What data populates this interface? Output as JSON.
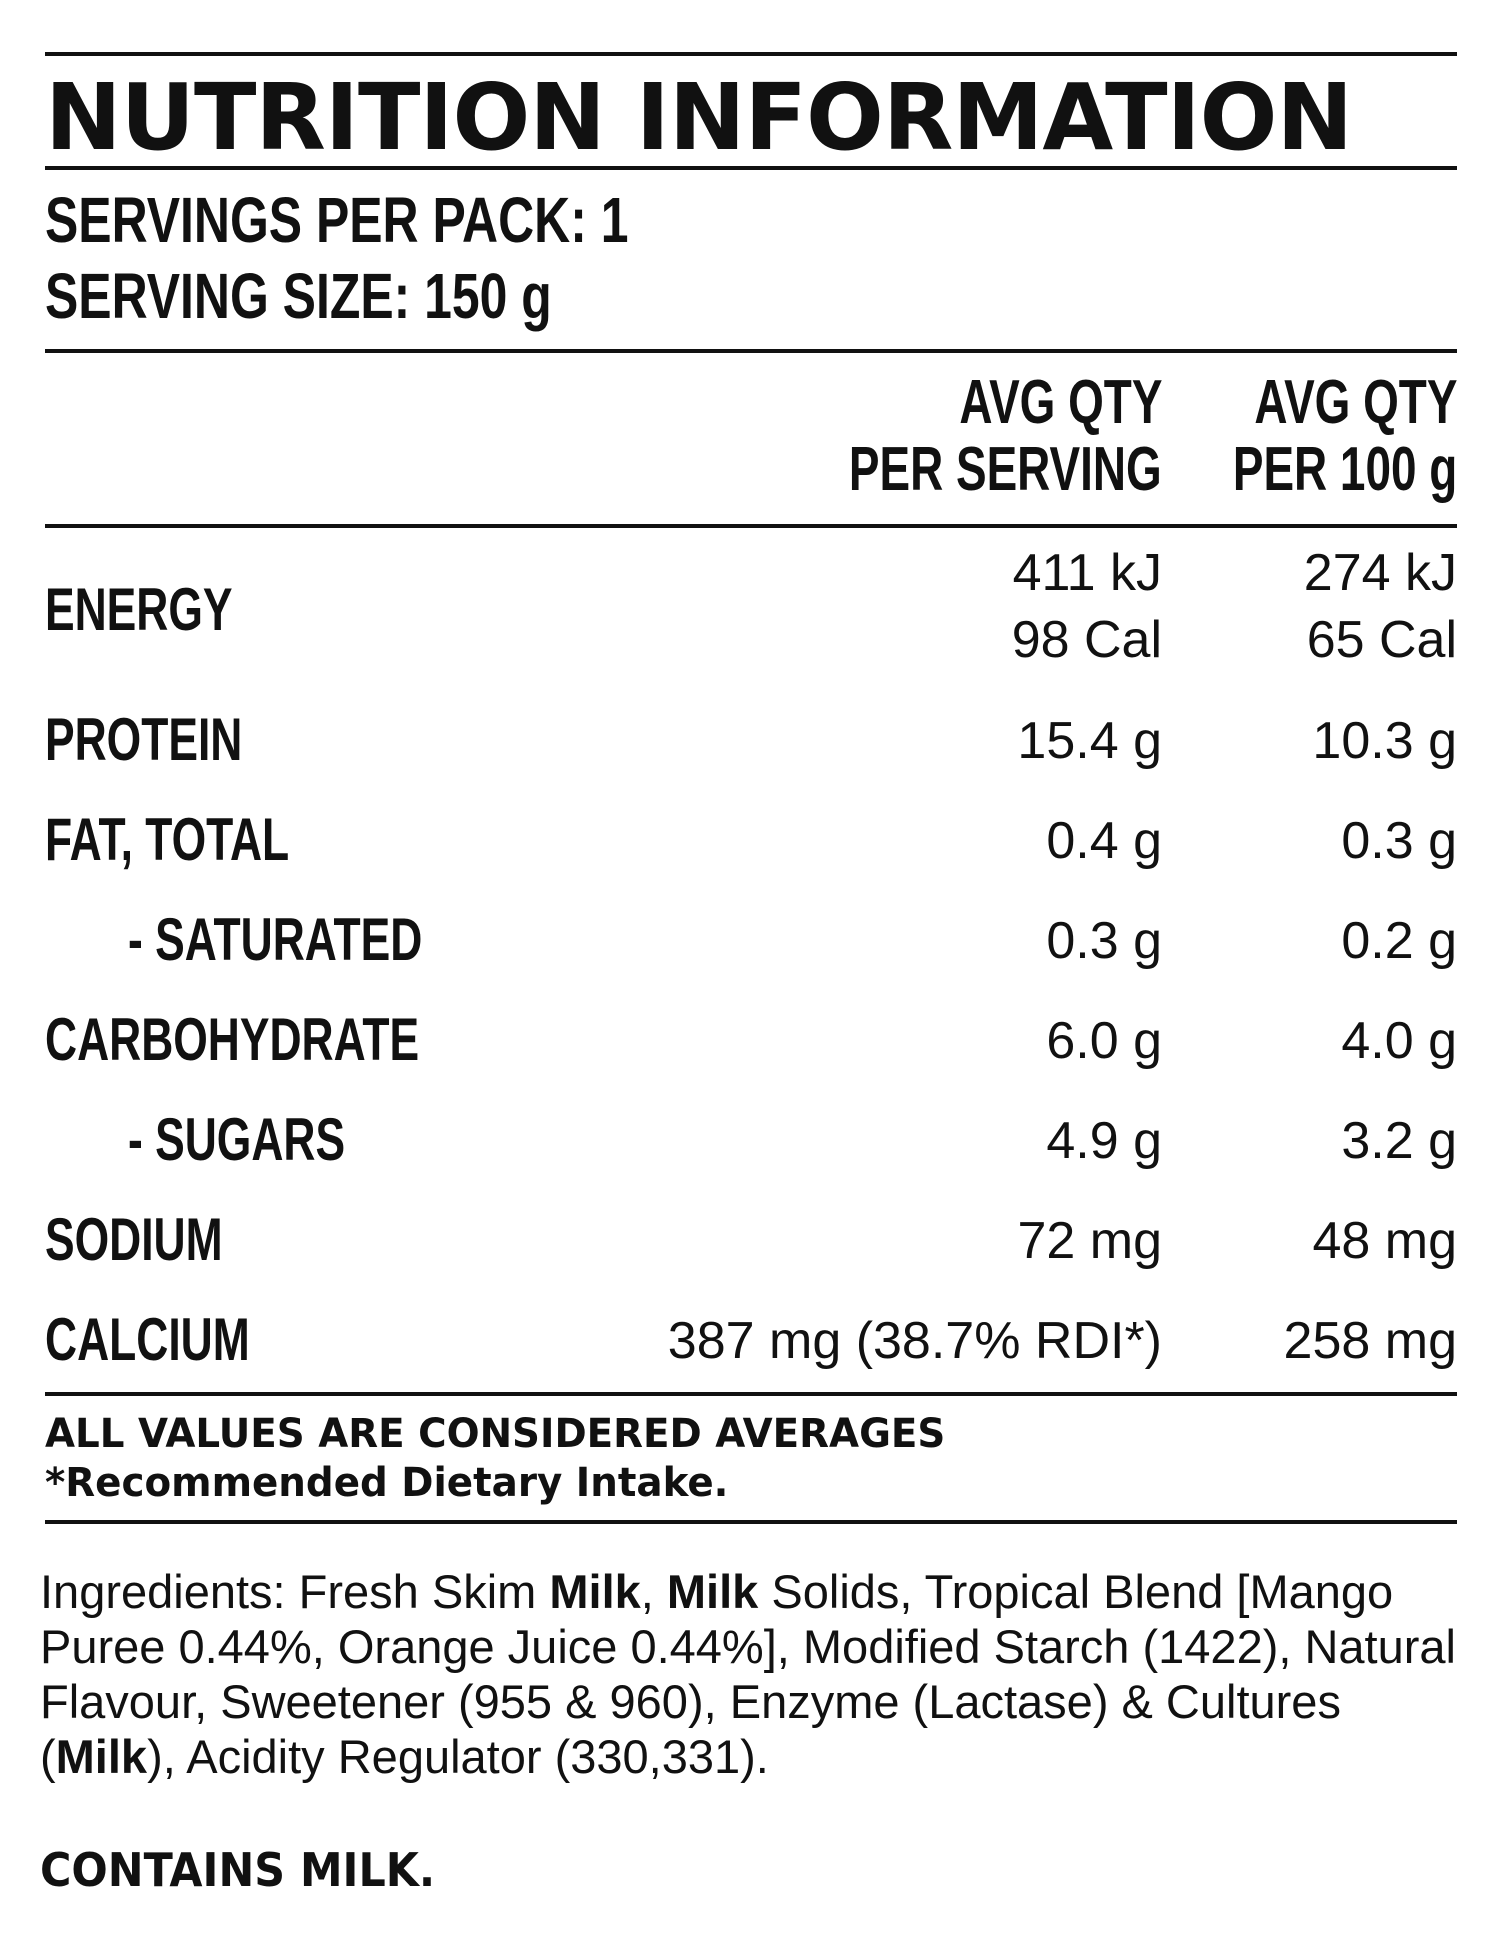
{
  "title": "NUTRITION INFORMATION",
  "servings_per_pack": "SERVINGS PER PACK: 1",
  "serving_size": "SERVING SIZE: 150 g",
  "columns": {
    "per_serving_line1": "AVG QTY",
    "per_serving_line2": "PER SERVING",
    "per_100g_line1": "AVG QTY",
    "per_100g_line2": "PER 100 g"
  },
  "rows": [
    {
      "label": "ENERGY",
      "per_serving": [
        "411 kJ",
        "98 Cal"
      ],
      "per_100g": [
        "274 kJ",
        "65 Cal"
      ]
    },
    {
      "label": "PROTEIN",
      "per_serving": "15.4 g",
      "per_100g": "10.3 g"
    },
    {
      "label": "FAT, TOTAL",
      "per_serving": "0.4 g",
      "per_100g": "0.3 g"
    },
    {
      "label": "- SATURATED",
      "per_serving": "0.3 g",
      "per_100g": "0.2 g"
    },
    {
      "label": "CARBOHYDRATE",
      "per_serving": "6.0 g",
      "per_100g": "4.0 g"
    },
    {
      "label": "- SUGARS",
      "per_serving": "4.9 g",
      "per_100g": "3.2 g"
    },
    {
      "label": "SODIUM",
      "per_serving": "72 mg",
      "per_100g": "48 mg"
    },
    {
      "label": "CALCIUM",
      "per_serving": "387 mg (38.7% RDI*)",
      "per_100g": "258 mg"
    }
  ],
  "footnote_1": "ALL VALUES ARE CONSIDERED AVERAGES",
  "footnote_2": "*Recommended Dietary Intake.",
  "ingredients": {
    "p1": "Ingredients: Fresh Skim ",
    "b1": "Milk",
    "p2": ", ",
    "b2": "Milk",
    "p3": " Solids, Tropical Blend [Mango Puree 0.44%, Orange Juice 0.44%], Modified Starch (1422), Natural Flavour, Sweetener (955 & 960), Enzyme (Lactase) & Cultures (",
    "b3": "Milk",
    "p4": "), Acidity Regulator (330,331)."
  },
  "contains": "CONTAINS MILK.",
  "colors": {
    "ink": "#111111",
    "background": "#ffffff"
  }
}
